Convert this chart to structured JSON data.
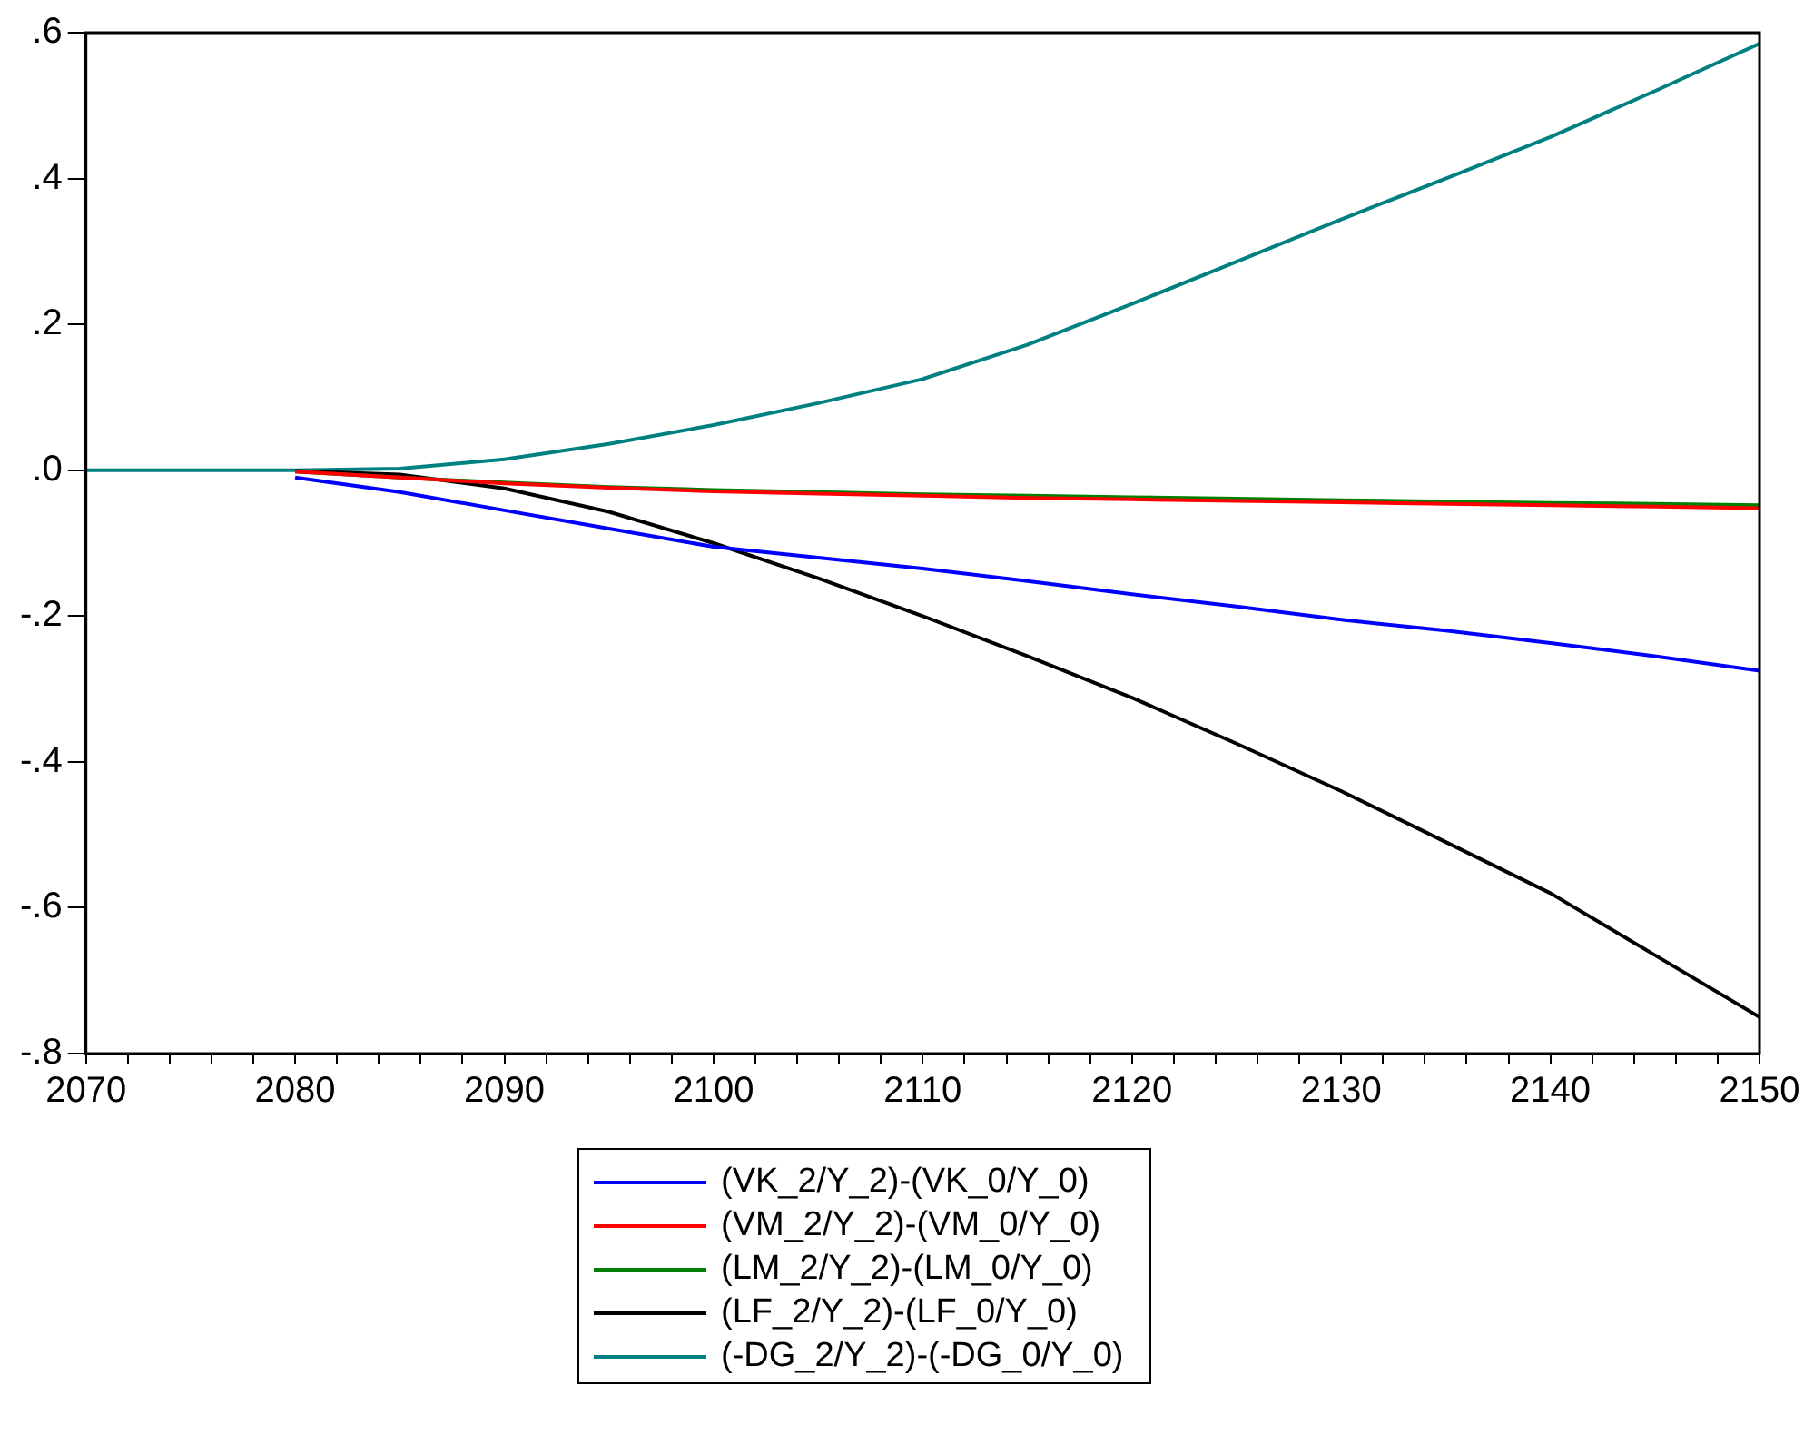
{
  "chart_data": {
    "type": "line",
    "xlim": [
      2070,
      2150
    ],
    "ylim": [
      -0.8,
      0.6
    ],
    "yticks": [
      {
        "value": -0.8,
        "label": "-.8"
      },
      {
        "value": -0.6,
        "label": "-.6"
      },
      {
        "value": -0.4,
        "label": "-.4"
      },
      {
        "value": -0.2,
        "label": "-.2"
      },
      {
        "value": 0,
        "label": ".0"
      },
      {
        "value": 0.2,
        "label": ".2"
      },
      {
        "value": 0.4,
        "label": ".4"
      },
      {
        "value": 0.6,
        "label": ".6"
      }
    ],
    "xticks": [
      2070,
      {
        "value": 2072,
        "label": null
      },
      {
        "value": 2074,
        "label": null
      },
      {
        "value": 2076,
        "label": null
      },
      {
        "value": 2078,
        "label": null
      },
      2080,
      {
        "value": 2082,
        "label": null
      },
      {
        "value": 2084,
        "label": null
      },
      {
        "value": 2086,
        "label": null
      },
      {
        "value": 2088,
        "label": null
      },
      2090,
      {
        "value": 2092,
        "label": null
      },
      {
        "value": 2094,
        "label": null
      },
      {
        "value": 2096,
        "label": null
      },
      {
        "value": 2098,
        "label": null
      },
      2100,
      {
        "value": 2102,
        "label": null
      },
      {
        "value": 2104,
        "label": null
      },
      {
        "value": 2106,
        "label": null
      },
      {
        "value": 2108,
        "label": null
      },
      2110,
      {
        "value": 2112,
        "label": null
      },
      {
        "value": 2114,
        "label": null
      },
      {
        "value": 2116,
        "label": null
      },
      {
        "value": 2118,
        "label": null
      },
      2120,
      {
        "value": 2122,
        "label": null
      },
      {
        "value": 2124,
        "label": null
      },
      {
        "value": 2126,
        "label": null
      },
      {
        "value": 2128,
        "label": null
      },
      2130,
      {
        "value": 2132,
        "label": null
      },
      {
        "value": 2134,
        "label": null
      },
      {
        "value": 2136,
        "label": null
      },
      {
        "value": 2138,
        "label": null
      },
      2140,
      {
        "value": 2142,
        "label": null
      },
      {
        "value": 2144,
        "label": null
      },
      {
        "value": 2146,
        "label": null
      },
      {
        "value": 2148,
        "label": null
      },
      2150
    ],
    "x": [
      2070,
      2079,
      2080,
      2085,
      2090,
      2095,
      2100,
      2105,
      2110,
      2115,
      2120,
      2125,
      2130,
      2135,
      2140,
      2145,
      2150
    ],
    "series": [
      {
        "name": "(VK_2/Y_2)-(VK_0/Y_0)",
        "color": "#0000ff",
        "values": [
          null,
          null,
          -0.01,
          -0.03,
          -0.055,
          -0.08,
          -0.105,
          -0.12,
          -0.135,
          -0.152,
          -0.17,
          -0.187,
          -0.205,
          -0.22,
          -0.237,
          -0.255,
          -0.275
        ]
      },
      {
        "name": "(VM_2/Y_2)-(VM_0/Y_0)",
        "color": "#ff0000",
        "values": [
          null,
          null,
          -0.002,
          -0.01,
          -0.018,
          -0.024,
          -0.029,
          -0.032,
          -0.035,
          -0.038,
          -0.04,
          -0.042,
          -0.044,
          -0.046,
          -0.048,
          -0.05,
          -0.052
        ]
      },
      {
        "name": "(LM_2/Y_2)-(LM_0/Y_0)",
        "color": "#008000",
        "values": [
          null,
          null,
          -0.002,
          -0.01,
          -0.017,
          -0.023,
          -0.027,
          -0.03,
          -0.033,
          -0.035,
          -0.037,
          -0.039,
          -0.041,
          -0.043,
          -0.045,
          -0.046,
          -0.048
        ]
      },
      {
        "name": "(LF_2/Y_2)-(LF_0/Y_0)",
        "color": "#000000",
        "values": [
          null,
          null,
          -0.001,
          -0.006,
          -0.025,
          -0.057,
          -0.1,
          -0.148,
          -0.2,
          -0.255,
          -0.312,
          -0.375,
          -0.44,
          -0.51,
          -0.58,
          -0.665,
          -0.75
        ]
      },
      {
        "name": "(-DG_2/Y_2)-(-DG_0/Y_0)",
        "color": "#008080",
        "values": [
          0,
          0,
          0,
          0.002,
          0.015,
          0.036,
          0.062,
          0.092,
          0.125,
          0.172,
          0.228,
          0.286,
          0.344,
          0.4,
          0.457,
          0.52,
          0.585
        ]
      }
    ],
    "marker": "none",
    "line_style": "solid",
    "grid": false,
    "legend": "bottom"
  }
}
